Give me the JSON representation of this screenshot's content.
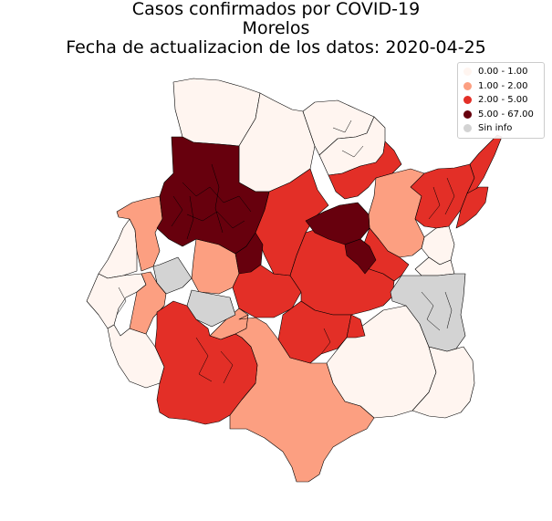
{
  "title": {
    "line1": "Casos confirmados por COVID-19",
    "line2": "Morelos",
    "line3": "Fecha de actualizacion de los datos: 2020-04-25"
  },
  "legend": [
    {
      "label": "0.00 - 1.00",
      "color": "#fff5f0",
      "class": "c0"
    },
    {
      "label": "1.00 - 2.00",
      "color": "#fc9f81",
      "class": "c1"
    },
    {
      "label": "2.00 - 5.00",
      "color": "#e32f27",
      "class": "c2"
    },
    {
      "label": "5.00 - 67.00",
      "color": "#67000d",
      "class": "c3"
    },
    {
      "label": "Sin info",
      "color": "#d3d3d3",
      "class": "na"
    }
  ],
  "colors": {
    "edge": "#000000"
  }
}
